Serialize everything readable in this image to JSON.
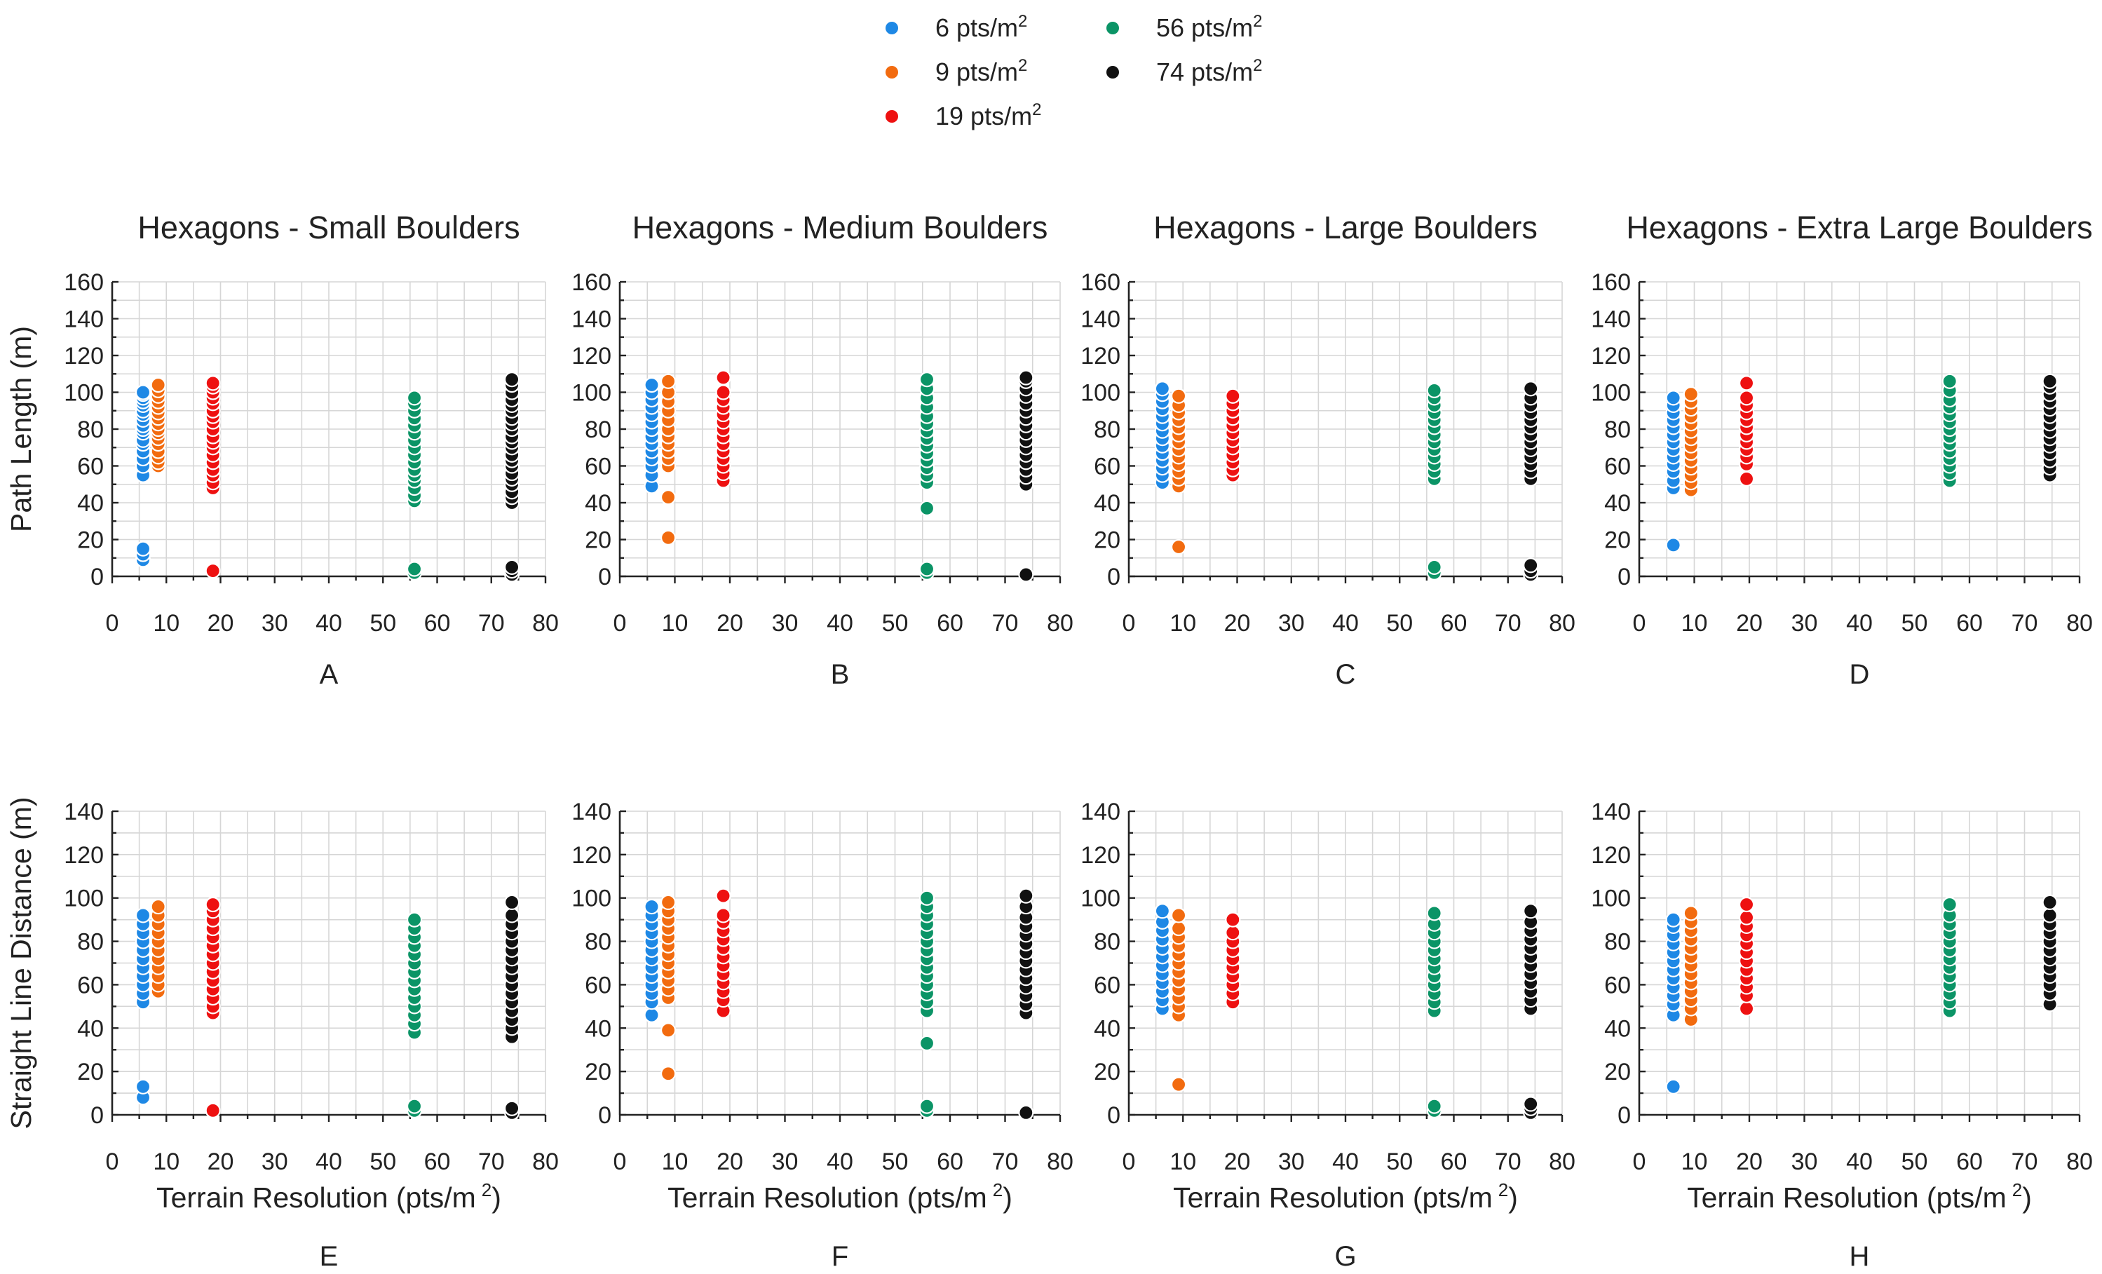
{
  "legend": [
    {
      "series_key": "s6",
      "label": "6 pts/m",
      "sup": "2",
      "color": "#1e88e5"
    },
    {
      "series_key": "s9",
      "label": "9 pts/m",
      "sup": "2",
      "color": "#f26b0f"
    },
    {
      "series_key": "s19",
      "label": "19 pts/m",
      "sup": "2",
      "color": "#ee1111"
    },
    {
      "series_key": "s56",
      "label": "56 pts/m",
      "sup": "2",
      "color": "#0b9466"
    },
    {
      "series_key": "s74",
      "label": "74 pts/m",
      "sup": "2",
      "color": "#111111"
    }
  ],
  "y_axis_titles": {
    "top": "Path Length (m)",
    "bottom": "Straight Line Distance (m)"
  },
  "x_axis_title": {
    "text": "Terrain Resolution (pts/m",
    "sup": "2",
    "close": ")"
  },
  "chart_data": [
    {
      "id": "A",
      "type": "scatter",
      "title": "Hexagons - Small Boulders",
      "panel_label": "A",
      "xlabel": "",
      "ylabel": "Path Length (m)",
      "xlim": [
        0,
        80
      ],
      "ylim": [
        0,
        160
      ],
      "xticks": [
        0,
        10,
        20,
        30,
        40,
        50,
        60,
        70,
        80
      ],
      "yticks": [
        0,
        20,
        40,
        60,
        80,
        100,
        120,
        140,
        160
      ],
      "series": [
        {
          "name": "6 pts/m2",
          "color": "#1e88e5",
          "x": 5.7,
          "y": [
            55,
            60,
            64,
            68,
            72,
            74,
            78,
            80,
            82,
            85,
            88,
            90,
            93,
            95,
            97,
            99,
            100,
            9,
            12,
            15
          ]
        },
        {
          "name": "9 pts/m2",
          "color": "#f26b0f",
          "x": 8.5,
          "y": [
            60,
            62,
            65,
            68,
            72,
            75,
            78,
            80,
            83,
            86,
            89,
            92,
            95,
            98,
            101,
            104
          ]
        },
        {
          "name": "19 pts/m2",
          "color": "#ee1111",
          "x": 18.6,
          "y": [
            48,
            51,
            55,
            58,
            62,
            66,
            70,
            73,
            76,
            80,
            84,
            87,
            90,
            94,
            97,
            100,
            103,
            105,
            3
          ]
        },
        {
          "name": "56 pts/m2",
          "color": "#0b9466",
          "x": 55.8,
          "y": [
            41,
            44,
            48,
            52,
            55,
            58,
            62,
            66,
            70,
            74,
            78,
            82,
            86,
            90,
            94,
            97,
            2,
            4
          ]
        },
        {
          "name": "74 pts/m2",
          "color": "#111111",
          "x": 73.8,
          "y": [
            40,
            43,
            46,
            50,
            53,
            56,
            60,
            63,
            66,
            70,
            73,
            76,
            80,
            83,
            86,
            90,
            93,
            96,
            100,
            104,
            107,
            1,
            3,
            5
          ]
        }
      ]
    },
    {
      "id": "B",
      "type": "scatter",
      "title": "Hexagons - Medium Boulders",
      "panel_label": "B",
      "xlabel": "",
      "ylabel": "",
      "xlim": [
        0,
        80
      ],
      "ylim": [
        0,
        160
      ],
      "xticks": [
        0,
        10,
        20,
        30,
        40,
        50,
        60,
        70,
        80
      ],
      "yticks": [
        0,
        20,
        40,
        60,
        80,
        100,
        120,
        140,
        160
      ],
      "series": [
        {
          "name": "6 pts/m2",
          "color": "#1e88e5",
          "x": 5.8,
          "y": [
            49,
            55,
            60,
            64,
            68,
            72,
            76,
            80,
            84,
            88,
            92,
            96,
            100,
            104
          ]
        },
        {
          "name": "9 pts/m2",
          "color": "#f26b0f",
          "x": 8.8,
          "y": [
            21,
            43,
            60,
            64,
            68,
            72,
            76,
            80,
            85,
            90,
            95,
            100,
            106
          ]
        },
        {
          "name": "19 pts/m2",
          "color": "#ee1111",
          "x": 18.8,
          "y": [
            52,
            56,
            60,
            64,
            68,
            72,
            76,
            80,
            84,
            88,
            92,
            96,
            100,
            108
          ]
        },
        {
          "name": "56 pts/m2",
          "color": "#0b9466",
          "x": 55.8,
          "y": [
            37,
            51,
            55,
            59,
            63,
            67,
            71,
            75,
            79,
            83,
            87,
            92,
            97,
            102,
            107,
            2,
            4
          ]
        },
        {
          "name": "74 pts/m2",
          "color": "#111111",
          "x": 73.8,
          "y": [
            50,
            54,
            58,
            62,
            66,
            70,
            74,
            78,
            82,
            86,
            90,
            94,
            98,
            102,
            106,
            108,
            1
          ]
        }
      ]
    },
    {
      "id": "C",
      "type": "scatter",
      "title": "Hexagons - Large Boulders",
      "panel_label": "C",
      "xlabel": "",
      "ylabel": "",
      "xlim": [
        0,
        80
      ],
      "ylim": [
        0,
        160
      ],
      "xticks": [
        0,
        10,
        20,
        30,
        40,
        50,
        60,
        70,
        80
      ],
      "yticks": [
        0,
        20,
        40,
        60,
        80,
        100,
        120,
        140,
        160
      ],
      "series": [
        {
          "name": "6 pts/m2",
          "color": "#1e88e5",
          "x": 6.2,
          "y": [
            51,
            55,
            59,
            63,
            67,
            71,
            75,
            79,
            83,
            87,
            91,
            95,
            99,
            102
          ]
        },
        {
          "name": "9 pts/m2",
          "color": "#f26b0f",
          "x": 9.2,
          "y": [
            16,
            49,
            53,
            57,
            61,
            65,
            69,
            73,
            77,
            81,
            85,
            89,
            93,
            98
          ]
        },
        {
          "name": "19 pts/m2",
          "color": "#ee1111",
          "x": 19.2,
          "y": [
            55,
            58,
            62,
            66,
            70,
            74,
            78,
            82,
            86,
            90,
            94,
            98
          ]
        },
        {
          "name": "56 pts/m2",
          "color": "#0b9466",
          "x": 56.4,
          "y": [
            53,
            57,
            61,
            65,
            69,
            73,
            77,
            81,
            85,
            89,
            93,
            97,
            101,
            2,
            5
          ]
        },
        {
          "name": "74 pts/m2",
          "color": "#111111",
          "x": 74.2,
          "y": [
            53,
            57,
            61,
            65,
            69,
            73,
            77,
            81,
            85,
            89,
            93,
            97,
            102,
            1,
            3,
            6
          ]
        }
      ]
    },
    {
      "id": "D",
      "type": "scatter",
      "title": "Hexagons - Extra Large Boulders",
      "panel_label": "D",
      "xlabel": "",
      "ylabel": "",
      "xlim": [
        0,
        80
      ],
      "ylim": [
        0,
        160
      ],
      "xticks": [
        0,
        10,
        20,
        30,
        40,
        50,
        60,
        70,
        80
      ],
      "yticks": [
        0,
        20,
        40,
        60,
        80,
        100,
        120,
        140,
        160
      ],
      "series": [
        {
          "name": "6 pts/m2",
          "color": "#1e88e5",
          "x": 6.2,
          "y": [
            17,
            48,
            52,
            57,
            61,
            65,
            69,
            73,
            77,
            81,
            85,
            89,
            93,
            97
          ]
        },
        {
          "name": "9 pts/m2",
          "color": "#f26b0f",
          "x": 9.4,
          "y": [
            47,
            51,
            55,
            59,
            63,
            67,
            71,
            75,
            79,
            83,
            87,
            91,
            95,
            99
          ]
        },
        {
          "name": "19 pts/m2",
          "color": "#ee1111",
          "x": 19.5,
          "y": [
            53,
            61,
            65,
            69,
            73,
            77,
            81,
            85,
            89,
            93,
            97,
            105
          ]
        },
        {
          "name": "56 pts/m2",
          "color": "#0b9466",
          "x": 56.4,
          "y": [
            52,
            56,
            60,
            64,
            68,
            72,
            76,
            80,
            84,
            88,
            92,
            96,
            101,
            106
          ]
        },
        {
          "name": "74 pts/m2",
          "color": "#111111",
          "x": 74.6,
          "y": [
            55,
            59,
            63,
            67,
            71,
            75,
            79,
            83,
            87,
            91,
            95,
            99,
            103,
            106
          ]
        }
      ]
    },
    {
      "id": "E",
      "type": "scatter",
      "title": "",
      "panel_label": "E",
      "xlabel": "Terrain Resolution (pts/m2)",
      "ylabel": "Straight Line Distance (m)",
      "xlim": [
        0,
        80
      ],
      "ylim": [
        0,
        140
      ],
      "xticks": [
        0,
        10,
        20,
        30,
        40,
        50,
        60,
        70,
        80
      ],
      "yticks": [
        0,
        20,
        40,
        60,
        80,
        100,
        120,
        140
      ],
      "series": [
        {
          "name": "6 pts/m2",
          "color": "#1e88e5",
          "x": 5.7,
          "y": [
            52,
            56,
            60,
            64,
            68,
            72,
            76,
            80,
            84,
            88,
            92,
            8,
            13
          ]
        },
        {
          "name": "9 pts/m2",
          "color": "#f26b0f",
          "x": 8.5,
          "y": [
            57,
            60,
            64,
            68,
            72,
            76,
            80,
            84,
            88,
            92,
            96
          ]
        },
        {
          "name": "19 pts/m2",
          "color": "#ee1111",
          "x": 18.6,
          "y": [
            47,
            50,
            54,
            58,
            62,
            66,
            70,
            74,
            78,
            82,
            86,
            90,
            94,
            97,
            2
          ]
        },
        {
          "name": "56 pts/m2",
          "color": "#0b9466",
          "x": 55.8,
          "y": [
            38,
            42,
            46,
            50,
            54,
            58,
            62,
            66,
            70,
            74,
            78,
            82,
            86,
            90,
            2,
            4
          ]
        },
        {
          "name": "74 pts/m2",
          "color": "#111111",
          "x": 73.8,
          "y": [
            36,
            40,
            44,
            48,
            52,
            56,
            60,
            64,
            68,
            72,
            76,
            80,
            84,
            88,
            92,
            98,
            1,
            3
          ]
        }
      ]
    },
    {
      "id": "F",
      "type": "scatter",
      "title": "",
      "panel_label": "F",
      "xlabel": "Terrain Resolution (pts/m2)",
      "ylabel": "",
      "xlim": [
        0,
        80
      ],
      "ylim": [
        0,
        140
      ],
      "xticks": [
        0,
        10,
        20,
        30,
        40,
        50,
        60,
        70,
        80
      ],
      "yticks": [
        0,
        20,
        40,
        60,
        80,
        100,
        120,
        140
      ],
      "series": [
        {
          "name": "6 pts/m2",
          "color": "#1e88e5",
          "x": 5.8,
          "y": [
            46,
            52,
            56,
            60,
            64,
            68,
            72,
            76,
            80,
            84,
            88,
            92,
            96
          ]
        },
        {
          "name": "9 pts/m2",
          "color": "#f26b0f",
          "x": 8.8,
          "y": [
            19,
            39,
            54,
            58,
            62,
            66,
            70,
            74,
            78,
            82,
            86,
            90,
            94,
            98
          ]
        },
        {
          "name": "19 pts/m2",
          "color": "#ee1111",
          "x": 18.8,
          "y": [
            48,
            53,
            57,
            61,
            65,
            69,
            73,
            77,
            81,
            85,
            89,
            92,
            101
          ]
        },
        {
          "name": "56 pts/m2",
          "color": "#0b9466",
          "x": 55.8,
          "y": [
            33,
            48,
            52,
            56,
            60,
            64,
            68,
            72,
            76,
            80,
            84,
            88,
            92,
            96,
            100,
            2,
            4
          ]
        },
        {
          "name": "74 pts/m2",
          "color": "#111111",
          "x": 73.8,
          "y": [
            47,
            51,
            55,
            59,
            63,
            67,
            71,
            75,
            79,
            83,
            87,
            91,
            96,
            101,
            1
          ]
        }
      ]
    },
    {
      "id": "G",
      "type": "scatter",
      "title": "",
      "panel_label": "G",
      "xlabel": "Terrain Resolution (pts/m2)",
      "ylabel": "",
      "xlim": [
        0,
        80
      ],
      "ylim": [
        0,
        140
      ],
      "xticks": [
        0,
        10,
        20,
        30,
        40,
        50,
        60,
        70,
        80
      ],
      "yticks": [
        0,
        20,
        40,
        60,
        80,
        100,
        120,
        140
      ],
      "series": [
        {
          "name": "6 pts/m2",
          "color": "#1e88e5",
          "x": 6.2,
          "y": [
            49,
            53,
            57,
            61,
            65,
            69,
            73,
            77,
            81,
            85,
            89,
            94
          ]
        },
        {
          "name": "9 pts/m2",
          "color": "#f26b0f",
          "x": 9.2,
          "y": [
            14,
            46,
            50,
            54,
            58,
            62,
            66,
            70,
            74,
            78,
            82,
            86,
            92
          ]
        },
        {
          "name": "19 pts/m2",
          "color": "#ee1111",
          "x": 19.2,
          "y": [
            52,
            56,
            60,
            64,
            68,
            72,
            76,
            80,
            84,
            90
          ]
        },
        {
          "name": "56 pts/m2",
          "color": "#0b9466",
          "x": 56.4,
          "y": [
            48,
            52,
            56,
            60,
            64,
            68,
            72,
            76,
            80,
            84,
            88,
            93,
            2,
            4
          ]
        },
        {
          "name": "74 pts/m2",
          "color": "#111111",
          "x": 74.2,
          "y": [
            49,
            53,
            57,
            61,
            65,
            69,
            73,
            77,
            81,
            85,
            89,
            94,
            1,
            3,
            5
          ]
        }
      ]
    },
    {
      "id": "H",
      "type": "scatter",
      "title": "",
      "panel_label": "H",
      "xlabel": "Terrain Resolution (pts/m2)",
      "ylabel": "",
      "xlim": [
        0,
        80
      ],
      "ylim": [
        0,
        140
      ],
      "xticks": [
        0,
        10,
        20,
        30,
        40,
        50,
        60,
        70,
        80
      ],
      "yticks": [
        0,
        20,
        40,
        60,
        80,
        100,
        120,
        140
      ],
      "series": [
        {
          "name": "6 pts/m2",
          "color": "#1e88e5",
          "x": 6.2,
          "y": [
            13,
            46,
            51,
            55,
            59,
            63,
            67,
            71,
            75,
            79,
            83,
            87,
            90
          ]
        },
        {
          "name": "9 pts/m2",
          "color": "#f26b0f",
          "x": 9.4,
          "y": [
            44,
            49,
            53,
            57,
            61,
            65,
            69,
            73,
            77,
            81,
            85,
            89,
            93
          ]
        },
        {
          "name": "19 pts/m2",
          "color": "#ee1111",
          "x": 19.5,
          "y": [
            49,
            55,
            59,
            63,
            67,
            71,
            75,
            79,
            83,
            87,
            91,
            97
          ]
        },
        {
          "name": "56 pts/m2",
          "color": "#0b9466",
          "x": 56.4,
          "y": [
            48,
            52,
            56,
            60,
            64,
            68,
            72,
            76,
            80,
            84,
            88,
            92,
            97
          ]
        },
        {
          "name": "74 pts/m2",
          "color": "#111111",
          "x": 74.6,
          "y": [
            51,
            56,
            60,
            64,
            68,
            72,
            76,
            80,
            84,
            88,
            92,
            98
          ]
        }
      ]
    }
  ]
}
